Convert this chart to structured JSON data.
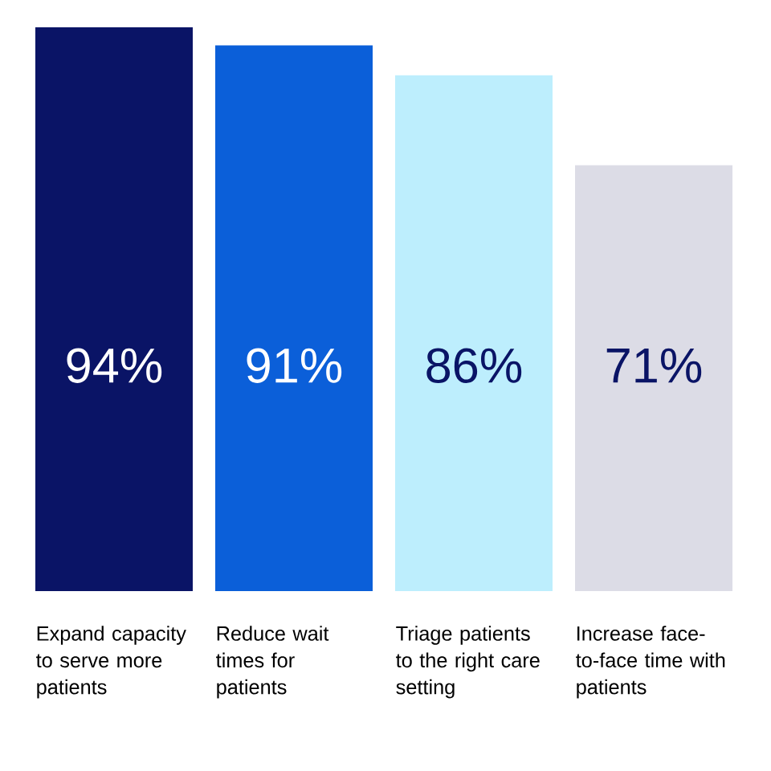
{
  "chart_data": {
    "type": "bar",
    "categories": [
      "Expand capacity to serve more patients",
      "Reduce wait times for patients",
      "Triage patients to the right care setting",
      "Increase face-to-face time with patients"
    ],
    "values": [
      94,
      91,
      86,
      71
    ],
    "colors": [
      "#0a1466",
      "#0b5fd9",
      "#bdeefd",
      "#dcdce6"
    ],
    "value_labels": [
      "94%",
      "91%",
      "86%",
      "71%"
    ]
  }
}
